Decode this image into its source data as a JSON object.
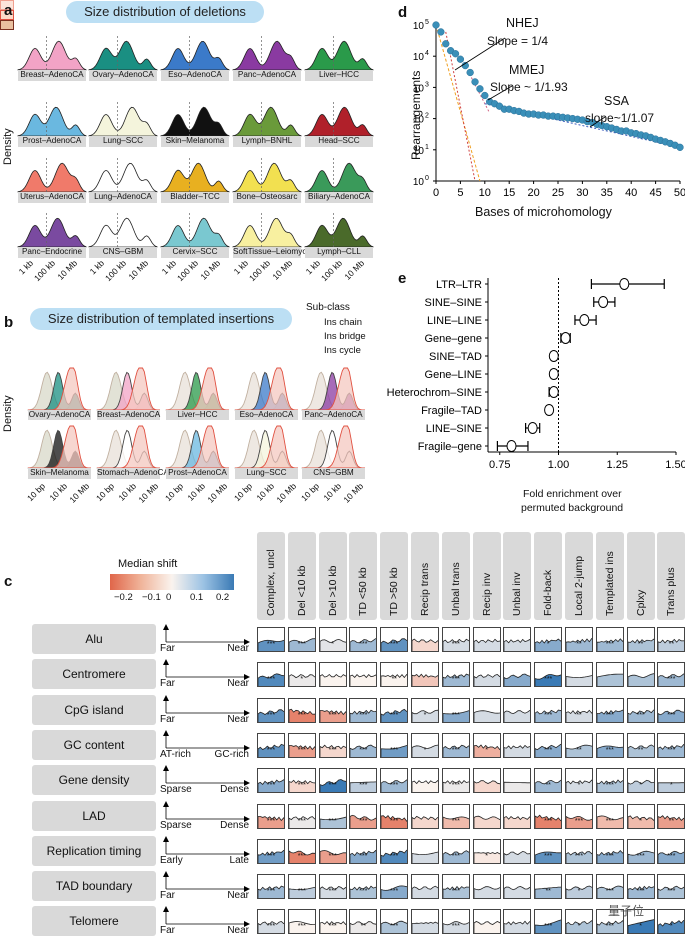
{
  "panel_a": {
    "label": "a",
    "title": "Size distribution of deletions",
    "ylabel": "Density",
    "cancers": [
      "Breast–AdenoCA",
      "Ovary–AdenoCA",
      "Eso–AdenoCA",
      "Panc–AdenoCA",
      "Liver–HCC",
      "Prost–AdenoCA",
      "Lung–SCC",
      "Skin–Melanoma",
      "Lymph–BNHL",
      "Head–SCC",
      "Uterus–AdenoCA",
      "Lung–AdenoCA",
      "Bladder–TCC",
      "Bone–Osteosarc",
      "Biliary–AdenoCA",
      "Panc–Endocrine",
      "CNS–GBM",
      "Cervix–SCC",
      "SoftTissue–Leiomyo",
      "Lymph–CLL"
    ],
    "colors": [
      "#f2a3c6",
      "#1a8f82",
      "#3b7ac9",
      "#8a3aa1",
      "#2a9a4a",
      "#6ab8e0",
      "#f4f4dc",
      "#111111",
      "#6a9a3a",
      "#b0202a",
      "#f07a6a",
      "#ffffff",
      "#e8b020",
      "#f2e050",
      "#3a9a5a",
      "#7a4aa0",
      "#ffffff",
      "#7ac8d0",
      "#f8f0a0",
      "#4a6a2a"
    ],
    "xticks": [
      "1 kb",
      "100 kb",
      "10 Mb"
    ]
  },
  "panel_b": {
    "label": "b",
    "title": "Size distribution of templated insertions",
    "ylabel": "Density",
    "legend_title": "Sub-class",
    "legend": [
      "Ins chain",
      "Ins bridge",
      "Ins cycle"
    ],
    "cancers": [
      "Ovary–AdenoCA",
      "Breast–AdenoCA",
      "Liver–HCC",
      "Eso–AdenoCA",
      "Panc–AdenoCA",
      "Skin–Melanoma",
      "Stomach–AdenoCA",
      "Prost–AdenoCA",
      "Lung–SCC",
      "CNS–GBM"
    ],
    "colors": [
      "#1a8f82",
      "#f2a3c6",
      "#2a9a4a",
      "#3b7ac9",
      "#8a3aa1",
      "#111111",
      "#ffffff",
      "#6ab8e0",
      "#f4f4dc",
      "#ffffff"
    ],
    "xticks": [
      "10 bp",
      "10 kb",
      "10 Mb"
    ]
  },
  "panel_c": {
    "label": "c",
    "legend_title": "Median shift",
    "legend_ticks": [
      "−0.2",
      "−0.1",
      "0",
      "0.1",
      "0.2"
    ],
    "columns": [
      "Complex, uncl",
      "Del <10 kb",
      "Del >10 kb",
      "TD <50 kb",
      "TD >50 kb",
      "Recip trans",
      "Unbal trans",
      "Recip inv",
      "Unbal inv",
      "Fold-back",
      "Local 2-jump",
      "Templated ins",
      "Cplxy",
      "Trans plus"
    ],
    "rows": [
      {
        "feature": "Alu",
        "left": "Far",
        "right": "Near",
        "shifts": [
          0.2,
          0.12,
          0.03,
          0.12,
          0.2,
          -0.05,
          0.05,
          0.05,
          0.05,
          0.15,
          0.12,
          0.12,
          0.1,
          0.08
        ],
        "stars": [
          "***",
          "***",
          "*",
          "***",
          "***",
          "",
          "***",
          "",
          "",
          "*",
          "**",
          "***",
          "**",
          "**"
        ]
      },
      {
        "feature": "Centromere",
        "left": "Far",
        "right": "Near",
        "shifts": [
          0.22,
          0.02,
          0.0,
          0.0,
          0.0,
          -0.08,
          0.12,
          0.05,
          0.15,
          0.25,
          0.05,
          0.1,
          0.1,
          0.12
        ],
        "stars": [
          "***",
          "*",
          "",
          "",
          "**",
          "",
          "***",
          "",
          "",
          "***",
          "",
          "",
          "",
          "***"
        ]
      },
      {
        "feature": "CpG island",
        "left": "Far",
        "right": "Near",
        "shifts": [
          0.2,
          -0.2,
          -0.15,
          0.12,
          0.2,
          0.05,
          0.15,
          0.05,
          0.05,
          0.12,
          0.05,
          0.15,
          0.12,
          0.15
        ],
        "stars": [
          "***",
          "***",
          "***",
          "***",
          "***",
          "*",
          "***",
          "",
          "",
          "***",
          "**",
          "***",
          "***",
          "***"
        ]
      },
      {
        "feature": "GC content",
        "left": "AT-rich",
        "right": "GC-rich",
        "shifts": [
          0.2,
          -0.15,
          -0.05,
          0.12,
          0.18,
          0.05,
          0.12,
          -0.12,
          0.05,
          0.15,
          0.1,
          0.15,
          0.1,
          0.12
        ],
        "stars": [
          "***",
          "***",
          "***",
          "***",
          "***",
          "*",
          "***",
          "*",
          "",
          "***",
          "**",
          "***",
          "**",
          "***"
        ]
      },
      {
        "feature": "Gene density",
        "left": "Sparse",
        "right": "Dense",
        "shifts": [
          0.15,
          -0.05,
          0.25,
          0.08,
          0.12,
          0.0,
          0.02,
          -0.05,
          0.02,
          0.12,
          0.05,
          0.1,
          0.08,
          0.08
        ],
        "stars": [
          "***",
          "***",
          "***",
          "***",
          "***",
          "",
          "***",
          "",
          "",
          "**",
          "*",
          "***",
          "*",
          "*"
        ]
      },
      {
        "feature": "LAD",
        "left": "Sparse",
        "right": "Dense",
        "shifts": [
          -0.15,
          0.02,
          0.1,
          -0.15,
          -0.2,
          -0.05,
          -0.1,
          -0.05,
          -0.05,
          -0.2,
          -0.15,
          -0.1,
          -0.1,
          -0.15
        ],
        "stars": [
          "***",
          "***",
          "***",
          "***",
          "***",
          "",
          "***",
          "",
          "",
          "***",
          "***",
          "***",
          "*",
          "**"
        ]
      },
      {
        "feature": "Replication timing",
        "left": "Early",
        "right": "Late",
        "shifts": [
          0.18,
          -0.2,
          -0.15,
          0.15,
          0.22,
          0.05,
          0.12,
          -0.02,
          0.05,
          0.2,
          0.1,
          0.15,
          0.12,
          0.15
        ],
        "stars": [
          "***",
          "***",
          "***",
          "***",
          "***",
          "",
          "***",
          "*",
          "",
          "***",
          "***",
          "***",
          "***",
          "***"
        ]
      },
      {
        "feature": "TAD boundary",
        "left": "Far",
        "right": "Near",
        "shifts": [
          0.12,
          0.08,
          0.05,
          0.1,
          0.15,
          0.05,
          0.1,
          0.05,
          0.05,
          0.12,
          0.08,
          0.1,
          0.12,
          0.1
        ],
        "stars": [
          "***",
          "***",
          "***",
          "***",
          "***",
          "",
          "***",
          "",
          "",
          "**",
          "*",
          "***",
          "***",
          "***"
        ]
      },
      {
        "feature": "Telomere",
        "left": "Far",
        "right": "Near",
        "shifts": [
          0.05,
          0.0,
          0.0,
          0.02,
          0.1,
          0.05,
          0.05,
          0.0,
          0.05,
          0.2,
          0.1,
          0.1,
          0.25,
          0.22
        ],
        "stars": [
          "***",
          "***",
          "***",
          "**",
          "***",
          "",
          "***",
          "",
          "",
          "***",
          "*",
          "***",
          "*",
          "*"
        ]
      }
    ]
  },
  "panel_d": {
    "label": "d",
    "ylabel": "Rearrangements",
    "xlabel": "Bases of microhomology",
    "annotations": [
      {
        "name": "NHEJ",
        "slope": "Slope = 1/4"
      },
      {
        "name": "MMEJ",
        "slope": "Slope ~ 1/1.93"
      },
      {
        "name": "SSA",
        "slope": "slope~1/1.07"
      }
    ],
    "xticks": [
      "0",
      "5",
      "10",
      "15",
      "20",
      "25",
      "30",
      "35",
      "40",
      "45",
      "50"
    ],
    "ytick_base": "10",
    "ytick_exponents": [
      "0",
      "1",
      "2",
      "3",
      "4",
      "5"
    ]
  },
  "chart_data": {
    "type": "scatter",
    "xlabel": "Bases of microhomology",
    "ylabel": "Rearrangements",
    "yscale": "log",
    "xlim": [
      0,
      50
    ],
    "ylim": [
      1,
      100000
    ],
    "x": [
      0,
      1,
      2,
      3,
      4,
      5,
      6,
      7,
      8,
      9,
      10,
      11,
      12,
      13,
      14,
      15,
      16,
      17,
      18,
      19,
      20,
      21,
      22,
      23,
      24,
      25,
      26,
      27,
      28,
      29,
      30,
      31,
      32,
      33,
      34,
      35,
      36,
      37,
      38,
      39,
      40,
      41,
      42,
      43,
      44,
      45,
      46,
      47,
      48,
      49,
      50
    ],
    "y": [
      100000,
      60000,
      25000,
      15000,
      12000,
      8000,
      5000,
      3000,
      1500,
      900,
      550,
      350,
      300,
      250,
      200,
      200,
      180,
      170,
      150,
      140,
      140,
      130,
      130,
      120,
      120,
      115,
      110,
      105,
      100,
      95,
      90,
      80,
      75,
      65,
      60,
      55,
      50,
      45,
      40,
      40,
      35,
      33,
      30,
      28,
      25,
      22,
      20,
      18,
      16,
      14,
      12
    ]
  },
  "panel_e": {
    "label": "e",
    "xlabel_line1": "Fold enrichment over",
    "xlabel_line2": "permuted background",
    "xticks": [
      "0.75",
      "1.00",
      "1.25",
      "1.50"
    ],
    "rows": [
      {
        "label": "LTR–LTR",
        "est": 1.28,
        "lo": 1.14,
        "hi": 1.45
      },
      {
        "label": "SINE–SINE",
        "est": 1.19,
        "lo": 1.15,
        "hi": 1.24
      },
      {
        "label": "LINE–LINE",
        "est": 1.11,
        "lo": 1.07,
        "hi": 1.16
      },
      {
        "label": "Gene–gene",
        "est": 1.03,
        "lo": 1.01,
        "hi": 1.05
      },
      {
        "label": "SINE–TAD",
        "est": 0.98,
        "lo": 0.97,
        "hi": 0.99
      },
      {
        "label": "Gene–LINE",
        "est": 0.98,
        "lo": 0.97,
        "hi": 0.99
      },
      {
        "label": "Heterochrom–SINE",
        "est": 0.98,
        "lo": 0.96,
        "hi": 0.99
      },
      {
        "label": "Fragile–TAD",
        "est": 0.96,
        "lo": 0.95,
        "hi": 0.97
      },
      {
        "label": "LINE–SINE",
        "est": 0.89,
        "lo": 0.86,
        "hi": 0.92
      },
      {
        "label": "Fragile–gene",
        "est": 0.8,
        "lo": 0.74,
        "hi": 0.87
      }
    ]
  },
  "watermark": "量子位"
}
